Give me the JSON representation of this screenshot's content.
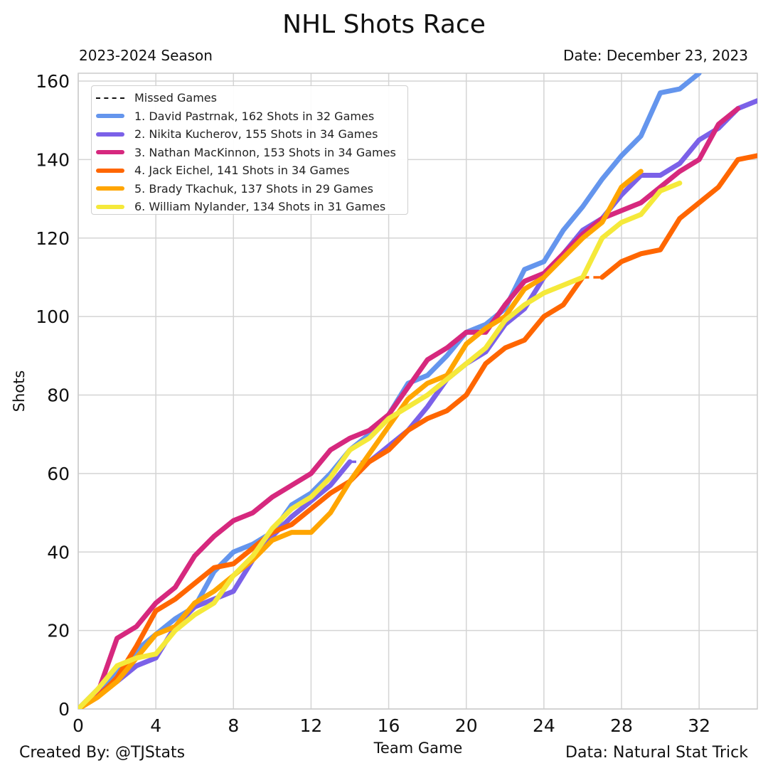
{
  "header": {
    "title": "NHL Shots Race",
    "season": "2023-2024 Season",
    "date": "Date: December 23, 2023"
  },
  "footer": {
    "credit": "Created By: @TJStats",
    "source": "Data: Natural Stat Trick"
  },
  "chart_data": {
    "type": "line",
    "title": "NHL Shots Race",
    "xlabel": "Team Game",
    "ylabel": "Shots",
    "xlim": [
      0,
      35
    ],
    "ylim": [
      0,
      162
    ],
    "xticks": [
      0,
      4,
      8,
      12,
      16,
      20,
      24,
      28,
      32
    ],
    "yticks": [
      0,
      20,
      40,
      60,
      80,
      100,
      120,
      140,
      160
    ],
    "grid": true,
    "legend_position": "top-left",
    "legend_missed_label": "Missed Games",
    "series": [
      {
        "name": "1. David Pastrnak, 162 Shots in 32 Games",
        "color": "#6495ED",
        "x": [
          0,
          1,
          2,
          3,
          4,
          5,
          6,
          7,
          8,
          9,
          10,
          11,
          12,
          13,
          14,
          15,
          16,
          17,
          18,
          19,
          20,
          21,
          22,
          23,
          24,
          25,
          26,
          27,
          28,
          29,
          30,
          31,
          32
        ],
        "y": [
          0,
          5,
          9,
          15,
          19,
          23,
          26,
          35,
          40,
          42,
          45,
          52,
          55,
          60,
          66,
          70,
          75,
          83,
          85,
          90,
          96,
          98,
          102,
          112,
          114,
          122,
          128,
          135,
          141,
          146,
          157,
          158,
          162
        ],
        "missed": []
      },
      {
        "name": "2. Nikita Kucherov, 155 Shots in 34 Games",
        "color": "#7B61E8",
        "x": [
          0,
          1,
          2,
          3,
          4,
          5,
          6,
          7,
          8,
          9,
          10,
          11,
          12,
          13,
          14,
          15,
          16,
          17,
          18,
          19,
          20,
          21,
          22,
          23,
          24,
          25,
          26,
          27,
          28,
          29,
          30,
          31,
          32,
          33,
          34,
          35
        ],
        "y": [
          0,
          4,
          7,
          11,
          13,
          21,
          26,
          28,
          30,
          38,
          44,
          49,
          53,
          57,
          63,
          63,
          67,
          71,
          77,
          84,
          88,
          91,
          98,
          102,
          110,
          116,
          122,
          125,
          131,
          136,
          136,
          139,
          145,
          148,
          153,
          155
        ],
        "missed": [
          [
            14,
            15
          ]
        ]
      },
      {
        "name": "3. Nathan MacKinnon, 153 Shots in 34 Games",
        "color": "#D6287E",
        "x": [
          0,
          1,
          2,
          3,
          4,
          5,
          6,
          7,
          8,
          9,
          10,
          11,
          12,
          13,
          14,
          15,
          16,
          17,
          18,
          19,
          20,
          21,
          22,
          23,
          24,
          25,
          26,
          27,
          28,
          29,
          30,
          31,
          32,
          33,
          34
        ],
        "y": [
          0,
          4,
          18,
          21,
          27,
          31,
          39,
          44,
          48,
          50,
          54,
          57,
          60,
          66,
          69,
          71,
          75,
          82,
          89,
          92,
          96,
          96,
          103,
          109,
          111,
          116,
          121,
          125,
          127,
          129,
          133,
          137,
          140,
          149,
          153
        ],
        "missed": []
      },
      {
        "name": "4. Jack Eichel, 141 Shots in 34 Games",
        "color": "#FF6600",
        "x": [
          0,
          1,
          2,
          3,
          4,
          5,
          6,
          7,
          8,
          9,
          10,
          11,
          12,
          13,
          14,
          15,
          16,
          17,
          18,
          19,
          20,
          21,
          22,
          23,
          24,
          25,
          26,
          27,
          28,
          29,
          30,
          31,
          32,
          33,
          34,
          35
        ],
        "y": [
          0,
          3,
          8,
          16,
          25,
          28,
          32,
          36,
          37,
          41,
          45,
          47,
          51,
          55,
          58,
          63,
          66,
          71,
          74,
          76,
          80,
          88,
          92,
          94,
          100,
          103,
          110,
          110,
          114,
          116,
          117,
          125,
          129,
          133,
          140,
          141
        ],
        "missed": [
          [
            26,
            27
          ]
        ]
      },
      {
        "name": "5. Brady Tkachuk, 137 Shots in 29 Games",
        "color": "#FFA500",
        "x": [
          0,
          1,
          2,
          3,
          4,
          5,
          6,
          7,
          8,
          9,
          10,
          11,
          12,
          13,
          14,
          15,
          16,
          17,
          18,
          19,
          20,
          21,
          22,
          23,
          24,
          25,
          26,
          27,
          28,
          29
        ],
        "y": [
          0,
          3,
          7,
          13,
          19,
          21,
          27,
          30,
          34,
          38,
          43,
          45,
          45,
          50,
          58,
          65,
          72,
          79,
          83,
          85,
          93,
          97,
          100,
          107,
          110,
          115,
          120,
          124,
          133,
          137
        ],
        "missed": []
      },
      {
        "name": "6. William Nylander, 134 Shots in 31 Games",
        "color": "#F5E93A",
        "x": [
          0,
          1,
          2,
          3,
          4,
          5,
          6,
          7,
          8,
          9,
          10,
          11,
          12,
          13,
          14,
          15,
          16,
          17,
          18,
          19,
          20,
          21,
          22,
          23,
          24,
          25,
          26,
          27,
          28,
          29,
          30,
          31
        ],
        "y": [
          0,
          5,
          11,
          13,
          14,
          20,
          24,
          27,
          34,
          39,
          46,
          51,
          54,
          59,
          66,
          69,
          74,
          77,
          80,
          84,
          88,
          92,
          99,
          103,
          106,
          108,
          110,
          120,
          124,
          126,
          132,
          134
        ],
        "missed": []
      }
    ]
  }
}
